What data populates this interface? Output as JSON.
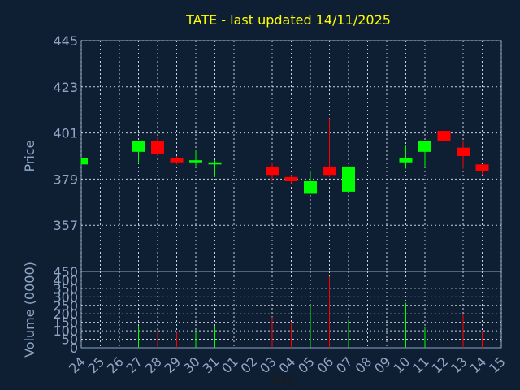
{
  "chart_data": {
    "type": "candlestick",
    "title": "TATE - last updated 14/11/2025",
    "xlabel": "Day",
    "x_tick_labels": [
      "24",
      "25",
      "26",
      "27",
      "28",
      "29",
      "30",
      "31",
      "01",
      "02",
      "03",
      "04",
      "05",
      "06",
      "07",
      "08",
      "09",
      "10",
      "11",
      "12",
      "13",
      "14",
      "15"
    ],
    "price_panel": {
      "ylabel": "Price",
      "ylim": [
        335,
        445
      ],
      "yticks": [
        357,
        379,
        401,
        423,
        445
      ],
      "grid": true
    },
    "volume_panel": {
      "ylabel": "Volume (0000)",
      "ylim": [
        0,
        450
      ],
      "yticks": [
        0,
        50,
        100,
        150,
        200,
        250,
        300,
        350,
        400,
        450
      ],
      "grid": true
    },
    "candles": [
      {
        "day": "24",
        "open": 386,
        "high": 389,
        "low": 386,
        "close": 389,
        "volume": 0
      },
      {
        "day": "27",
        "open": 392,
        "high": 397,
        "low": 387,
        "close": 397,
        "volume": 130
      },
      {
        "day": "28",
        "open": 397,
        "high": 399,
        "low": 390,
        "close": 391,
        "volume": 100
      },
      {
        "day": "29",
        "open": 389,
        "high": 390,
        "low": 386,
        "close": 387,
        "volume": 90
      },
      {
        "day": "30",
        "open": 387,
        "high": 393,
        "low": 385,
        "close": 388,
        "volume": 100
      },
      {
        "day": "31",
        "open": 386,
        "high": 388,
        "low": 380,
        "close": 387,
        "volume": 130
      },
      {
        "day": "03",
        "open": 385,
        "high": 387,
        "low": 378,
        "close": 381,
        "volume": 180
      },
      {
        "day": "04",
        "open": 380,
        "high": 381,
        "low": 377,
        "close": 378,
        "volume": 150
      },
      {
        "day": "05",
        "open": 372,
        "high": 383,
        "low": 372,
        "close": 378,
        "volume": 250
      },
      {
        "day": "06",
        "open": 385,
        "high": 408,
        "low": 380,
        "close": 381,
        "volume": 420
      },
      {
        "day": "07",
        "open": 373,
        "high": 385,
        "low": 373,
        "close": 385,
        "volume": 165
      },
      {
        "day": "10",
        "open": 387,
        "high": 395,
        "low": 384,
        "close": 389,
        "volume": 265
      },
      {
        "day": "11",
        "open": 392,
        "high": 397,
        "low": 385,
        "close": 397,
        "volume": 120
      },
      {
        "day": "12",
        "open": 402,
        "high": 402,
        "low": 396,
        "close": 397,
        "volume": 90
      },
      {
        "day": "13",
        "open": 394,
        "high": 397,
        "low": 384,
        "close": 390,
        "volume": 200
      },
      {
        "day": "14",
        "open": 386,
        "high": 386,
        "low": 381,
        "close": 383,
        "volume": 100
      }
    ],
    "colors": {
      "background": "#0f1f33",
      "axis_text": "#8fa6c4",
      "title_text": "#ffff00",
      "grid": "#c8d2e0",
      "up": "#00ff00",
      "down": "#ff0000"
    }
  }
}
